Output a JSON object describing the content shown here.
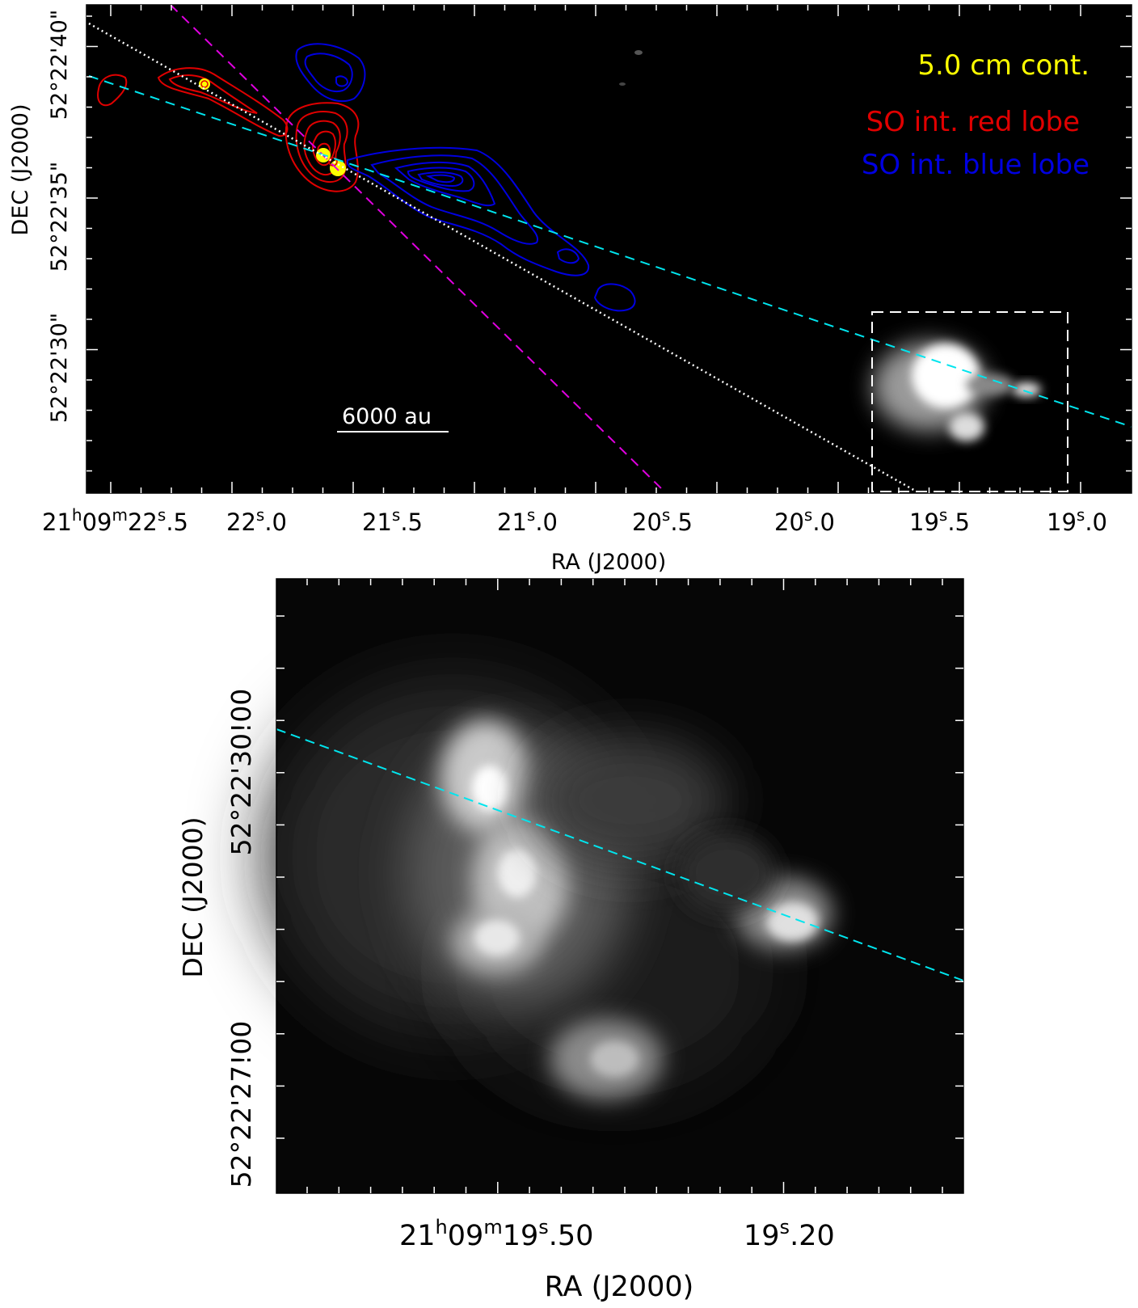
{
  "top_panel": {
    "ylabel": "DEC (J2000)",
    "xlabel": "RA (J2000)",
    "yticks": [
      "52°22'40\"",
      "52°22'35\"",
      "52°22'30\""
    ],
    "xticks": [
      {
        "main": "21",
        "h": "h",
        "m0": "09",
        "m": "m",
        "s0": "22",
        "s": "s",
        "frac": ".5"
      },
      {
        "main": "22",
        "s": "s",
        "frac": ".0"
      },
      {
        "main": "21",
        "s": "s",
        "frac": ".5"
      },
      {
        "main": "21",
        "s": "s",
        "frac": ".0"
      },
      {
        "main": "20",
        "s": "s",
        "frac": ".5"
      },
      {
        "main": "20",
        "s": "s",
        "frac": ".0"
      },
      {
        "main": "19",
        "s": "s",
        "frac": ".5"
      },
      {
        "main": "19",
        "s": "s",
        "frac": ".0"
      }
    ],
    "legend": {
      "item1": "5.0 cm cont.",
      "item2": "SO int. red lobe",
      "item3": "SO int. blue lobe"
    },
    "scalebar": "6000 au",
    "colors": {
      "cont": "#ffff00",
      "red_lobe": "#e00000",
      "blue_lobe": "#0000e0",
      "cyan_line": "#00e5ee",
      "magenta_line": "#e000e0",
      "white_line": "#ffffff"
    }
  },
  "bottom_panel": {
    "ylabel": "DEC (J2000)",
    "xlabel": "RA (J2000)",
    "yticks": [
      "52°22'30!00",
      "52°22'27!00"
    ],
    "xtick1": {
      "a": "21",
      "h": "h",
      "b": "09",
      "m": "m",
      "c": "19",
      "s": "s",
      "d": ".50"
    },
    "xtick2": {
      "a": "19",
      "s": "s",
      "d": ".20"
    }
  }
}
